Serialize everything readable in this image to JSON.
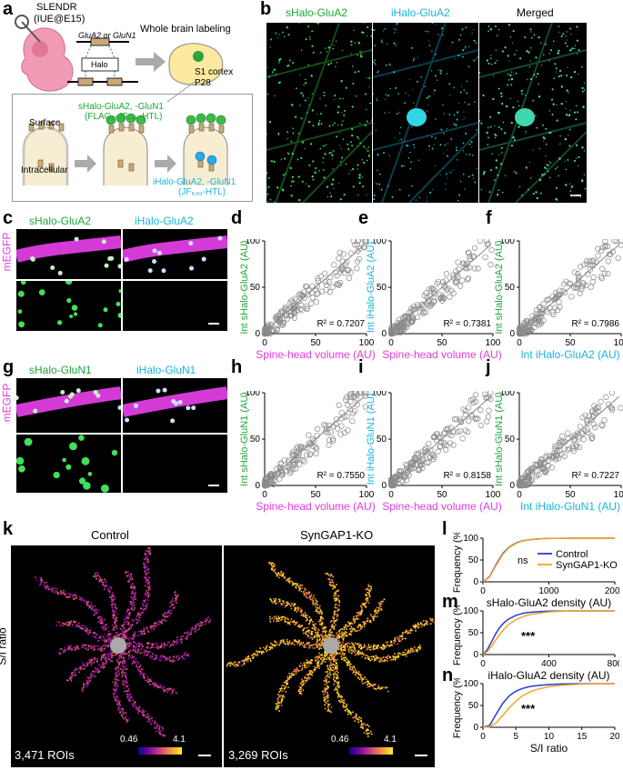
{
  "panel_a": {
    "letter": "a",
    "method": "SLENDR",
    "method_sub": "(IUE@E15)",
    "gene": "GluA2 or GluN1",
    "tag": "Halo",
    "whole_brain": "Whole brain labeling",
    "region": "S1 cortex",
    "age": "P28",
    "surface": "Surface",
    "intracellular": "Intracellular",
    "s_label_1": "sHalo-GluA2, -GluN1",
    "s_label_2": "(FLAG₂-JF₆₄₆-HTL)",
    "i_label_1": "iHalo-GluA2, -GluN1",
    "i_label_2": "(JF₅₄₉-HTL)"
  },
  "panel_b": {
    "letter": "b",
    "titles": [
      "sHalo-GluA2",
      "iHalo-GluA2",
      "Merged"
    ]
  },
  "panel_c": {
    "letter": "c",
    "side": "mEGFP",
    "titles": [
      "sHalo-GluA2",
      "iHalo-GluA2"
    ]
  },
  "panel_g": {
    "letter": "g",
    "side": "mEGFP",
    "titles": [
      "sHalo-GluN1",
      "iHalo-GluN1"
    ]
  },
  "colors": {
    "green": "#1fa637",
    "cyan": "#19b3e0",
    "magenta": "#e23be0",
    "blue": "#1f3fd6",
    "orange": "#f5a623"
  },
  "scatter_panels": [
    {
      "letter": "d",
      "xlabel": "Spine-head volume (AU)",
      "ylabel": "Int sHalo-GluA2 (AU)",
      "r2": "R² = 0.7207",
      "xcolor": "magenta",
      "ycolor": "green"
    },
    {
      "letter": "e",
      "xlabel": "Spine-head volume (AU)",
      "ylabel": "Int iHalo-GluA2 (AU)",
      "r2": "R² = 0.7381",
      "xcolor": "magenta",
      "ycolor": "cyan"
    },
    {
      "letter": "f",
      "xlabel": "Int iHalo-GluA2 (AU)",
      "ylabel": "Int sHalo-GluA2 (AU)",
      "r2": "R² = 0.7986",
      "xcolor": "cyan",
      "ycolor": "green"
    },
    {
      "letter": "h",
      "xlabel": "Spine-head volume (AU)",
      "ylabel": "Int sHalo-GluN1 (AU)",
      "r2": "R² = 0.7550",
      "xcolor": "magenta",
      "ycolor": "green"
    },
    {
      "letter": "i",
      "xlabel": "Spine-head volume (AU)",
      "ylabel": "Int iHalo-GluN1 (AU)",
      "r2": "R² = 0.8158",
      "xcolor": "magenta",
      "ycolor": "cyan"
    },
    {
      "letter": "j",
      "xlabel": "Int iHalo-GluN1 (AU)",
      "ylabel": "Int sHalo-GluN1 (AU)",
      "r2": "R² = 0.7227",
      "xcolor": "cyan",
      "ycolor": "green"
    }
  ],
  "scatter_axis": {
    "ticks": [
      "0",
      "50",
      "100"
    ]
  },
  "panel_k": {
    "letter": "k",
    "titles": [
      "Control",
      "SynGAP1-KO"
    ],
    "ylabel": "S/I ratio",
    "rois": [
      "3,471 ROIs",
      "3,269 ROIs"
    ],
    "cbar_min": "0.46",
    "cbar_max": "4.1"
  },
  "chart_data": [
    {
      "type": "line",
      "panel": "l",
      "xlabel": "sHalo-GluA2 density (AU)",
      "ylabel": "Frequency (%)",
      "xlim": [
        0,
        2000
      ],
      "ylim": [
        0,
        100
      ],
      "xticks": [
        "0",
        "1000",
        "2000"
      ],
      "yticks": [
        "0",
        "50",
        "100"
      ],
      "annotation": "ns",
      "legend": [
        "Control",
        "SynGAP1-KO"
      ],
      "series": [
        {
          "name": "Control",
          "x": [
            0,
            100,
            200,
            300,
            400,
            500,
            600,
            700,
            800,
            1000,
            1200,
            1500,
            2000
          ],
          "y": [
            0,
            12,
            40,
            65,
            80,
            89,
            94,
            96.5,
            98,
            99.3,
            99.8,
            100,
            100
          ]
        },
        {
          "name": "SynGAP1-KO",
          "x": [
            0,
            100,
            200,
            300,
            400,
            500,
            600,
            700,
            800,
            1000,
            1200,
            1500,
            2000
          ],
          "y": [
            0,
            11,
            38,
            63,
            79,
            88,
            93.5,
            96,
            97.8,
            99.2,
            99.8,
            100,
            100
          ]
        }
      ]
    },
    {
      "type": "line",
      "panel": "m",
      "xlabel": "iHalo-GluA2 density (AU)",
      "ylabel": "Frequency (%)",
      "xlim": [
        0,
        800
      ],
      "ylim": [
        0,
        100
      ],
      "xticks": [
        "0",
        "400",
        "800"
      ],
      "yticks": [
        "0",
        "50",
        "100"
      ],
      "annotation": "***",
      "series": [
        {
          "name": "Control",
          "x": [
            0,
            25,
            50,
            75,
            100,
            125,
            150,
            200,
            250,
            300,
            400,
            500,
            600,
            800
          ],
          "y": [
            0,
            10,
            28,
            46,
            61,
            72,
            80,
            90,
            95,
            97.5,
            99.3,
            99.8,
            100,
            100
          ]
        },
        {
          "name": "SynGAP1-KO",
          "x": [
            0,
            25,
            50,
            75,
            100,
            125,
            150,
            200,
            250,
            300,
            400,
            500,
            600,
            800
          ],
          "y": [
            0,
            6,
            18,
            32,
            45,
            57,
            67,
            80,
            88,
            93,
            97.8,
            99.3,
            99.8,
            100
          ]
        }
      ]
    },
    {
      "type": "line",
      "panel": "n",
      "xlabel": "S/I ratio",
      "ylabel": "Frequency (%)",
      "xlim": [
        0,
        20
      ],
      "ylim": [
        0,
        100
      ],
      "xticks": [
        "0",
        "5",
        "10",
        "15",
        "20"
      ],
      "yticks": [
        "0",
        "50",
        "100"
      ],
      "annotation": "***",
      "series": [
        {
          "name": "Control",
          "x": [
            0,
            1,
            2,
            3,
            4,
            5,
            6,
            7,
            8,
            10,
            12,
            15,
            20
          ],
          "y": [
            0,
            4,
            30,
            55,
            72,
            83,
            89,
            93,
            95.5,
            98,
            99.2,
            99.8,
            100
          ]
        },
        {
          "name": "SynGAP1-KO",
          "x": [
            0,
            1,
            2,
            3,
            4,
            5,
            6,
            7,
            8,
            10,
            12,
            15,
            20
          ],
          "y": [
            0,
            1,
            10,
            27,
            45,
            60,
            72,
            80,
            86,
            93,
            96.5,
            99,
            100
          ]
        }
      ]
    }
  ]
}
